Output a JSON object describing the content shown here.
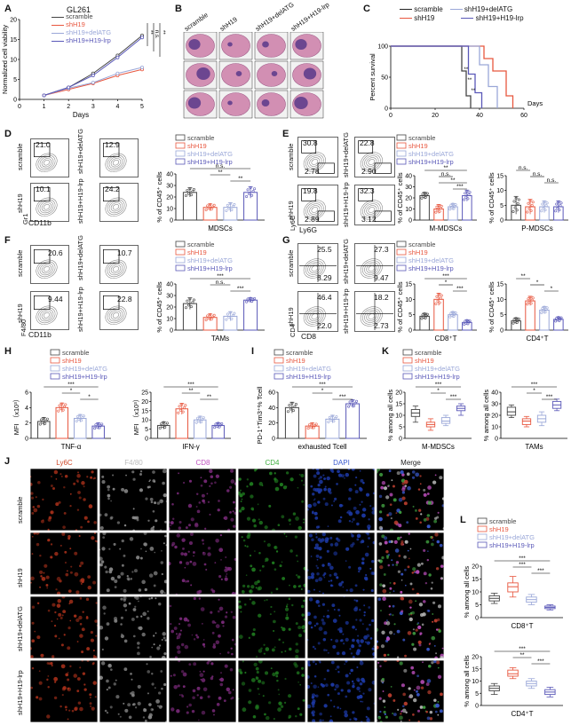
{
  "panel_letters": [
    "A",
    "B",
    "C",
    "D",
    "E",
    "F",
    "G",
    "H",
    "I",
    "J",
    "K",
    "L"
  ],
  "groups": [
    "scramble",
    "shH19",
    "shH19+delATG",
    "shH19+H19-lrp"
  ],
  "colors": {
    "scramble": "#444444",
    "shH19": "#e8573f",
    "delATG": "#9aa7d8",
    "lrp": "#5a58b8"
  },
  "panelA": {
    "title": "GL261",
    "ylabel": "Normalized cell viability",
    "xlabel": "Days",
    "sig": [
      "**",
      "n.s.",
      "**"
    ]
  },
  "panelB": {
    "cols": [
      "scramble",
      "shH19",
      "shH19+delATG",
      "shH19+H19-lrp"
    ]
  },
  "panelC": {
    "ylabel": "Percent survival",
    "xlabel": "Days",
    "sig": [
      "**",
      "**",
      "**"
    ]
  },
  "panelD": {
    "ylabel": "% of CD45⁺ cells",
    "xlabel": "MDSCs",
    "flow": [
      "21.0",
      "12.9",
      "10.1",
      "24.2"
    ],
    "labels": [
      "scramble",
      "shH19+delATG",
      "shH19",
      "shH19+H19-lrp"
    ],
    "axes": [
      "Gr1",
      "CD11b"
    ],
    "sig": [
      "n.s.",
      "**",
      "**"
    ]
  },
  "panelE": {
    "ylabel": "% of CD45⁺ cells",
    "xlabels": [
      "M-MDSCs",
      "P-MDSCs"
    ],
    "flow": [
      "30.8",
      "2.78",
      "22.8",
      "2.90",
      "19.8",
      "2.89",
      "32.3",
      "3.12"
    ],
    "labels": [
      "scramble",
      "shH19+delATG",
      "shH19",
      "shH19+H19-lrp"
    ],
    "axes": [
      "Ly6C",
      "Ly6G"
    ],
    "sig1": [
      "**",
      "n.s.",
      "**",
      "***"
    ],
    "sig2": [
      "n.s.",
      "n.s.",
      "n.s."
    ]
  },
  "panelF": {
    "ylabel": "% of CD45⁺ cells",
    "xlabel": "TAMs",
    "flow": [
      "20.6",
      "10.7",
      "9.44",
      "22.8"
    ],
    "labels": [
      "scramble",
      "shH19+delATG",
      "shH19",
      "shH19+H19-lrp"
    ],
    "axes": [
      "F4/80",
      "CD11b"
    ],
    "sig": [
      "***",
      "n.s.",
      "***"
    ]
  },
  "panelG": {
    "ylabel": "% of CD45⁺ cells",
    "xlabels": [
      "CD8⁺T",
      "CD4⁺T"
    ],
    "flow": [
      "25.5",
      "8.29",
      "27.3",
      "9.47",
      "46.4",
      "22.0",
      "18.2",
      "2.73"
    ],
    "labels": [
      "scramble",
      "shH19+delATG",
      "shH19",
      "shH19+H19-lrp"
    ],
    "axes": [
      "CD4",
      "CD8"
    ],
    "sig1": [
      "***",
      "*",
      "***"
    ],
    "sig2": [
      "**",
      "*",
      "*"
    ]
  },
  "panelH": {
    "ylabel": "MFI （x10³）",
    "xlabels": [
      "TNF-α",
      "IFN-γ"
    ],
    "sig1": [
      "***",
      "*",
      "*"
    ],
    "sig2": [
      "***",
      "**",
      "**"
    ]
  },
  "panelI": {
    "ylabel": "PD-1⁺Tim3⁺% Tcell",
    "xlabel": "exhausted Tcell",
    "sig": [
      "***",
      "*",
      "***"
    ]
  },
  "panelJ": {
    "cols": [
      "Ly6C",
      "F4/80",
      "CD8",
      "CD4",
      "DAPI",
      "Merge"
    ],
    "rows": [
      "scramble",
      "shH19",
      "shH19+delATG",
      "shH19+H19-lrp"
    ],
    "colcolors": [
      "#d0492a",
      "#bbbbbb",
      "#c050c0",
      "#40b040",
      "#3a5ad0",
      "#222222"
    ]
  },
  "panelK": {
    "ylabel": "% among all cells",
    "xlabels": [
      "M-MDSCs",
      "TAMs"
    ],
    "sig1": [
      "***",
      "*",
      "***"
    ],
    "sig2": [
      "***",
      "*",
      "***"
    ]
  },
  "panelL": {
    "ylabel": "% among all cells",
    "xlabels": [
      "CD8⁺T",
      "CD4⁺T"
    ],
    "sig1": [
      "***",
      "***",
      "***"
    ],
    "sig2": [
      "***",
      "**",
      "***"
    ]
  },
  "chart_data": [
    {
      "panel": "A",
      "type": "line",
      "title": "GL261",
      "xlabel": "Days",
      "ylabel": "Normalized cell viability",
      "x": [
        1,
        2,
        3,
        4,
        5
      ],
      "ylim": [
        0,
        20
      ],
      "yticks": [
        0,
        5,
        10,
        15,
        20
      ],
      "series": [
        {
          "name": "scramble",
          "values": [
            1,
            3,
            6.5,
            11,
            16
          ]
        },
        {
          "name": "shH19",
          "values": [
            1,
            2.5,
            4,
            6,
            7.5
          ]
        },
        {
          "name": "shH19+delATG",
          "values": [
            1,
            2.8,
            4.2,
            6.5,
            8
          ]
        },
        {
          "name": "shH19+H19-lrp",
          "values": [
            1,
            3,
            6,
            10.5,
            15.5
          ]
        }
      ]
    },
    {
      "panel": "C",
      "type": "line",
      "xlabel": "Days",
      "ylabel": "Percent survival",
      "xlim": [
        0,
        60
      ],
      "ylim": [
        0,
        100
      ],
      "xticks": [
        0,
        20,
        40,
        60
      ],
      "yticks": [
        0,
        50,
        100
      ],
      "series": [
        {
          "name": "scramble",
          "x": [
            0,
            30,
            32,
            34,
            36
          ],
          "values": [
            100,
            100,
            60,
            20,
            0
          ]
        },
        {
          "name": "shH19",
          "x": [
            0,
            38,
            42,
            46,
            52,
            55
          ],
          "values": [
            100,
            100,
            80,
            60,
            20,
            0
          ]
        },
        {
          "name": "shH19+delATG",
          "x": [
            0,
            36,
            40,
            44,
            48
          ],
          "values": [
            100,
            100,
            70,
            35,
            0
          ]
        },
        {
          "name": "shH19+H19-lrp",
          "x": [
            0,
            33,
            35,
            38,
            41
          ],
          "values": [
            100,
            100,
            55,
            25,
            0
          ]
        }
      ]
    },
    {
      "panel": "D",
      "type": "bar",
      "xlabel": "MDSCs",
      "ylabel": "% of CD45⁺ cells",
      "ylim": [
        0,
        40
      ],
      "yticks": [
        0,
        10,
        20,
        30,
        40
      ],
      "categories": [
        "scramble",
        "shH19",
        "shH19+delATG",
        "shH19+H19-lrp"
      ],
      "values": [
        24,
        11,
        11,
        24
      ],
      "errors": [
        4,
        3,
        4,
        5
      ]
    },
    {
      "panel": "E1",
      "type": "bar",
      "xlabel": "M-MDSCs",
      "ylabel": "% of CD45⁺ cells",
      "ylim": [
        0,
        40
      ],
      "yticks": [
        0,
        10,
        20,
        30,
        40
      ],
      "categories": [
        "scramble",
        "shH19",
        "shH19+delATG",
        "shH19+H19-lrp"
      ],
      "values": [
        22,
        10,
        12,
        22
      ],
      "errors": [
        3,
        4,
        3,
        5
      ]
    },
    {
      "panel": "E2",
      "type": "bar",
      "xlabel": "P-MDSCs",
      "ylabel": "% of CD45⁺ cells",
      "ylim": [
        0,
        15
      ],
      "yticks": [
        0,
        5,
        10,
        15
      ],
      "categories": [
        "scramble",
        "shH19",
        "shH19+delATG",
        "shH19+H19-lrp"
      ],
      "values": [
        5,
        4.5,
        4.5,
        4.5
      ],
      "errors": [
        3,
        2.5,
        2,
        2
      ]
    },
    {
      "panel": "F",
      "type": "bar",
      "xlabel": "TAMs",
      "ylabel": "% of CD45⁺ cells",
      "ylim": [
        0,
        40
      ],
      "yticks": [
        0,
        10,
        20,
        30,
        40
      ],
      "categories": [
        "scramble",
        "shH19",
        "shH19+delATG",
        "shH19+H19-lrp"
      ],
      "values": [
        23,
        11,
        12,
        26
      ],
      "errors": [
        5,
        3,
        4,
        2
      ]
    },
    {
      "panel": "G1",
      "type": "bar",
      "xlabel": "CD8⁺T",
      "ylabel": "% of CD45⁺ cells",
      "ylim": [
        0,
        15
      ],
      "yticks": [
        0,
        5,
        10,
        15
      ],
      "categories": [
        "scramble",
        "shH19",
        "shH19+delATG",
        "shH19+H19-lrp"
      ],
      "values": [
        4.5,
        10,
        5,
        2.5
      ],
      "errors": [
        1,
        2,
        1,
        0.8
      ]
    },
    {
      "panel": "G2",
      "type": "bar",
      "xlabel": "CD4⁺T",
      "ylabel": "% of CD45⁺ cells",
      "ylim": [
        0,
        15
      ],
      "yticks": [
        0,
        5,
        10,
        15
      ],
      "categories": [
        "scramble",
        "shH19",
        "shH19+delATG",
        "shH19+H19-lrp"
      ],
      "values": [
        3,
        9.5,
        6.5,
        3.5
      ],
      "errors": [
        1,
        1.5,
        1.2,
        0.8
      ]
    },
    {
      "panel": "H1",
      "type": "bar",
      "xlabel": "TNF-α",
      "ylabel": "MFI （x10³）",
      "ylim": [
        0,
        6
      ],
      "yticks": [
        0,
        2,
        4,
        6
      ],
      "categories": [
        "scramble",
        "shH19",
        "shH19+delATG",
        "shH19+H19-lrp"
      ],
      "values": [
        2.2,
        4,
        2.6,
        1.6
      ],
      "errors": [
        0.5,
        0.6,
        0.5,
        0.4
      ]
    },
    {
      "panel": "H2",
      "type": "bar",
      "xlabel": "IFN-γ",
      "ylabel": "MFI （x10³）",
      "ylim": [
        0,
        25
      ],
      "yticks": [
        0,
        5,
        10,
        15,
        20,
        25
      ],
      "categories": [
        "scramble",
        "shH19",
        "shH19+delATG",
        "shH19+H19-lrp"
      ],
      "values": [
        7,
        16,
        10,
        7
      ],
      "errors": [
        2,
        3,
        2,
        1.5
      ]
    },
    {
      "panel": "I",
      "type": "bar",
      "xlabel": "exhausted Tcell",
      "ylabel": "PD-1⁺Tim3⁺% Tcell",
      "ylim": [
        0,
        60
      ],
      "yticks": [
        0,
        20,
        40,
        60
      ],
      "categories": [
        "scramble",
        "shH19",
        "shH19+delATG",
        "shH19+H19-lrp"
      ],
      "values": [
        40,
        16,
        25,
        45
      ],
      "errors": [
        7,
        4,
        5,
        5
      ]
    },
    {
      "panel": "K1",
      "type": "box",
      "xlabel": "M-MDSCs",
      "ylabel": "% among all cells",
      "ylim": [
        0,
        20
      ],
      "yticks": [
        0,
        5,
        10,
        15,
        20
      ],
      "categories": [
        "scramble",
        "shH19",
        "shH19+delATG",
        "shH19+H19-lrp"
      ],
      "median": [
        11,
        6,
        7.5,
        13
      ],
      "q1": [
        9.5,
        5,
        6.5,
        12
      ],
      "q3": [
        12.5,
        7,
        9,
        14
      ],
      "min": [
        7,
        3.5,
        5.5,
        10
      ],
      "max": [
        14,
        8.5,
        10,
        15
      ]
    },
    {
      "panel": "K2",
      "type": "box",
      "xlabel": "TAMs",
      "ylabel": "% among all cells",
      "ylim": [
        0,
        40
      ],
      "yticks": [
        0,
        10,
        20,
        30,
        40
      ],
      "categories": [
        "scramble",
        "shH19",
        "shH19+delATG",
        "shH19+H19-lrp"
      ],
      "median": [
        23,
        15,
        17,
        29
      ],
      "q1": [
        20,
        12,
        14,
        26
      ],
      "q3": [
        27,
        17,
        20,
        32
      ],
      "min": [
        18,
        10,
        11,
        24
      ],
      "max": [
        29,
        19,
        23,
        34
      ]
    },
    {
      "panel": "L1",
      "type": "box",
      "xlabel": "CD8⁺T",
      "ylabel": "% among all cells",
      "ylim": [
        0,
        20
      ],
      "yticks": [
        0,
        5,
        10,
        15,
        20
      ],
      "categories": [
        "scramble",
        "shH19",
        "shH19+delATG",
        "shH19+H19-lrp"
      ],
      "median": [
        7.5,
        12,
        7,
        4
      ],
      "q1": [
        6.5,
        10,
        6,
        3.5
      ],
      "q3": [
        8.5,
        13.5,
        8,
        4.5
      ],
      "min": [
        5.5,
        8,
        5,
        3
      ],
      "max": [
        9.5,
        16,
        9,
        5
      ]
    },
    {
      "panel": "L2",
      "type": "box",
      "xlabel": "CD4⁺T",
      "ylabel": "% among all cells",
      "ylim": [
        0,
        20
      ],
      "yticks": [
        0,
        5,
        10,
        15,
        20
      ],
      "categories": [
        "scramble",
        "shH19",
        "shH19+delATG",
        "shH19+H19-lrp"
      ],
      "median": [
        7,
        13,
        9,
        5.5
      ],
      "q1": [
        6,
        12,
        8,
        4.5
      ],
      "q3": [
        8,
        14.5,
        10,
        6.5
      ],
      "min": [
        4.5,
        11,
        7,
        3.5
      ],
      "max": [
        9,
        15.5,
        11,
        7.5
      ]
    }
  ]
}
